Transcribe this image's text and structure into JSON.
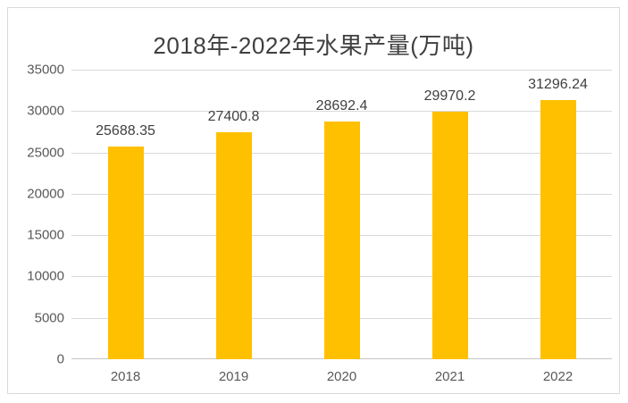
{
  "title": "2018年-2022年水果产量(万吨)",
  "colors": {
    "bar": "#FFC000",
    "gridline": "#D9D9D9",
    "axis_line": "#C6C6C6",
    "title_text": "#404040",
    "value_label_text": "#404040",
    "axis_text": "#595959",
    "frame_border": "#D9D9D9",
    "background": "#FFFFFF"
  },
  "chart_data": {
    "type": "bar",
    "title": "2018年-2022年水果产量(万吨)",
    "categories": [
      "2018",
      "2019",
      "2020",
      "2021",
      "2022"
    ],
    "values": [
      25688.35,
      27400.8,
      28692.4,
      29970.2,
      31296.24
    ],
    "data_labels": [
      "25688.35",
      "27400.8",
      "28692.4",
      "29970.2",
      "31296.24"
    ],
    "xlabel": "",
    "ylabel": "",
    "ylim": [
      0,
      35000
    ],
    "ytick_step": 5000,
    "yticks": [
      "0",
      "5000",
      "10000",
      "15000",
      "20000",
      "25000",
      "30000",
      "35000"
    ],
    "grid": true,
    "legend": "none",
    "bar_color": "#FFC000"
  }
}
